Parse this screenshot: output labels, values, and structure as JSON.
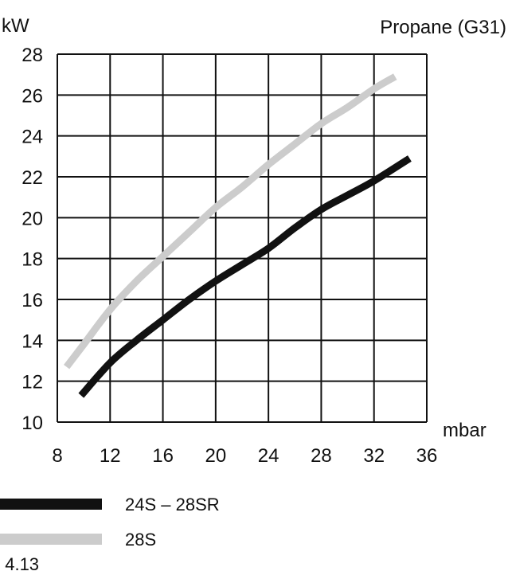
{
  "chart_data": {
    "type": "line",
    "title": "Propane (G31)",
    "ylabel": "kW",
    "xlabel": "mbar",
    "xlim": [
      8,
      36
    ],
    "ylim": [
      10,
      28
    ],
    "xticks": [
      8,
      12,
      16,
      20,
      24,
      28,
      32,
      36
    ],
    "yticks": [
      10,
      12,
      14,
      16,
      18,
      20,
      22,
      24,
      26,
      28
    ],
    "grid": true,
    "legend_position": "bottom-left",
    "series": [
      {
        "name": "24S – 28SR",
        "color": "#111111",
        "x": [
          9.8,
          12,
          14,
          16,
          18,
          20,
          22,
          24,
          26,
          28,
          30,
          32,
          34.7
        ],
        "y": [
          11.3,
          12.9,
          14.0,
          15.0,
          16.0,
          16.9,
          17.7,
          18.5,
          19.5,
          20.4,
          21.1,
          21.8,
          22.9
        ]
      },
      {
        "name": "28S",
        "color": "#cccccc",
        "x": [
          8.7,
          10,
          12,
          14,
          16,
          18,
          20,
          22,
          24,
          26,
          28,
          30,
          32,
          33.6
        ],
        "y": [
          12.7,
          13.8,
          15.5,
          16.9,
          18.1,
          19.3,
          20.5,
          21.5,
          22.6,
          23.6,
          24.6,
          25.4,
          26.3,
          26.9
        ]
      }
    ]
  },
  "caption": ". 4.13"
}
